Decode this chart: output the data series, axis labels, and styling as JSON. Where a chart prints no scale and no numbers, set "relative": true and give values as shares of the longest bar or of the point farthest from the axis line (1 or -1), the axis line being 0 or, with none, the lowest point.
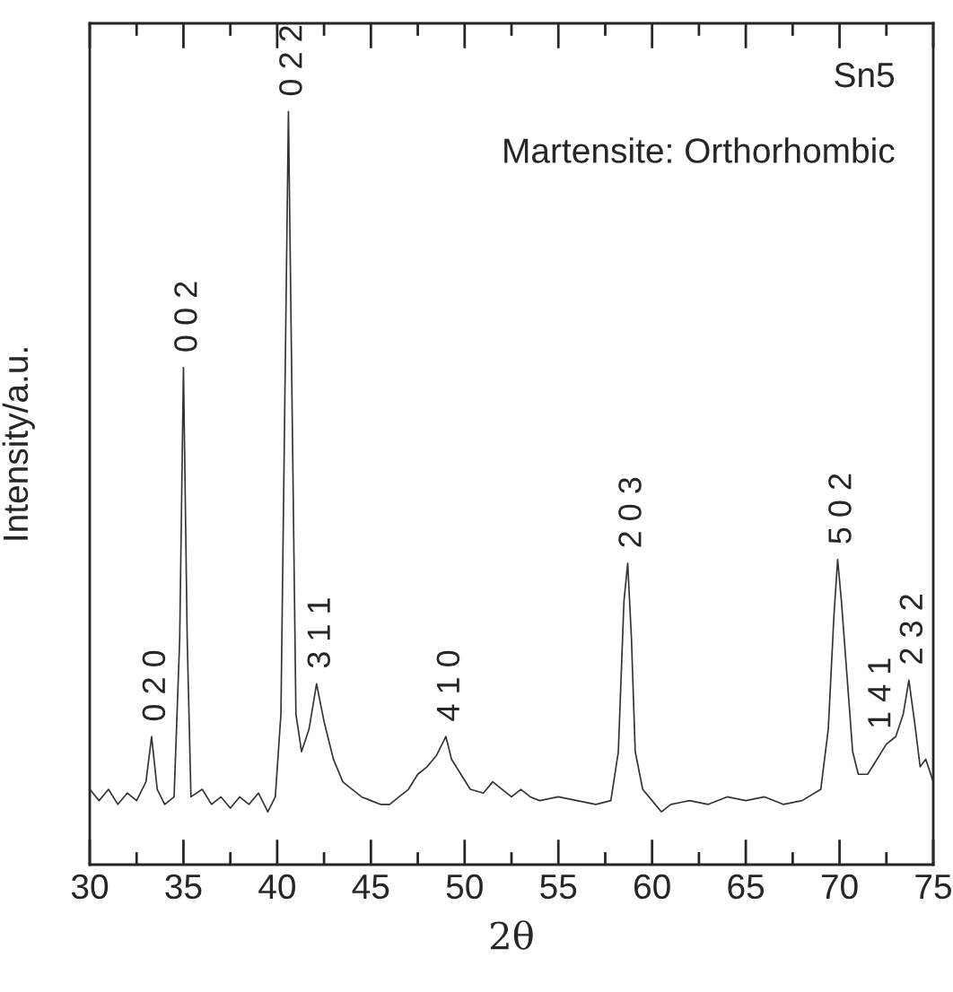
{
  "chart_data": {
    "type": "line",
    "relative": true,
    "xlabel": "2θ",
    "ylabel": "Intensity/a.u.",
    "xlim": [
      30,
      75
    ],
    "xticks": [
      30,
      {
        "value": 32.5,
        "label": null
      },
      35,
      {
        "value": 37.5,
        "label": null
      },
      40,
      {
        "value": 42.5,
        "label": null
      },
      45,
      {
        "value": 47.5,
        "label": null
      },
      50,
      {
        "value": 52.5,
        "label": null
      },
      55,
      {
        "value": 57.5,
        "label": null
      },
      60,
      {
        "value": 62.5,
        "label": null
      },
      65,
      {
        "value": 67.5,
        "label": null
      },
      70,
      {
        "value": 72.5,
        "label": null
      },
      75
    ],
    "tick_labels": "x",
    "grid": false,
    "legend": false,
    "marker": "none",
    "line_style": "solid",
    "series": [
      {
        "color": "#333333",
        "x": [
          30.0,
          30.5,
          31.0,
          31.5,
          32.0,
          32.5,
          33.0,
          33.3,
          33.6,
          34.0,
          34.5,
          34.8,
          35.0,
          35.2,
          35.4,
          36.0,
          36.5,
          37.0,
          37.5,
          38.0,
          38.5,
          39.0,
          39.5,
          39.9,
          40.2,
          40.4,
          40.6,
          40.8,
          41.0,
          41.3,
          41.7,
          42.1,
          42.5,
          43.0,
          43.5,
          44.0,
          44.5,
          45.0,
          45.5,
          46.0,
          46.5,
          47.0,
          47.5,
          48.0,
          48.5,
          49.0,
          49.3,
          49.8,
          50.3,
          51.0,
          51.5,
          52.0,
          52.5,
          53.0,
          53.5,
          54.0,
          55.0,
          56.0,
          57.0,
          57.8,
          58.2,
          58.5,
          58.7,
          58.9,
          59.1,
          59.5,
          60.0,
          60.5,
          61.0,
          62.0,
          63.0,
          64.0,
          65.0,
          66.0,
          67.0,
          68.0,
          69.0,
          69.4,
          69.7,
          69.9,
          70.1,
          70.4,
          70.7,
          71.0,
          71.5,
          72.0,
          72.5,
          73.0,
          73.4,
          73.7,
          74.0,
          74.3,
          74.6,
          75.0
        ],
        "values": [
          0.1,
          0.085,
          0.1,
          0.08,
          0.095,
          0.085,
          0.11,
          0.17,
          0.1,
          0.08,
          0.09,
          0.3,
          0.66,
          0.3,
          0.09,
          0.1,
          0.08,
          0.09,
          0.075,
          0.09,
          0.08,
          0.095,
          0.07,
          0.09,
          0.2,
          0.6,
          1.0,
          0.6,
          0.2,
          0.15,
          0.18,
          0.24,
          0.19,
          0.14,
          0.11,
          0.1,
          0.09,
          0.085,
          0.08,
          0.08,
          0.09,
          0.1,
          0.12,
          0.13,
          0.145,
          0.17,
          0.14,
          0.12,
          0.1,
          0.095,
          0.11,
          0.1,
          0.09,
          0.1,
          0.09,
          0.085,
          0.09,
          0.085,
          0.08,
          0.085,
          0.15,
          0.35,
          0.4,
          0.3,
          0.15,
          0.1,
          0.085,
          0.07,
          0.08,
          0.085,
          0.08,
          0.09,
          0.085,
          0.09,
          0.08,
          0.085,
          0.1,
          0.18,
          0.33,
          0.405,
          0.35,
          0.25,
          0.15,
          0.12,
          0.12,
          0.14,
          0.16,
          0.17,
          0.2,
          0.245,
          0.19,
          0.13,
          0.14,
          0.11
        ]
      }
    ],
    "annotations": [
      "Sn5",
      "Martensite: Orthorhombic",
      {
        "text": "0 2 0",
        "x": 33.3,
        "y": 0.17
      },
      {
        "text": "0 0 2",
        "x": 35.0,
        "y": 0.66
      },
      {
        "text": "0 2 2",
        "x": 40.6,
        "y": 1.0
      },
      {
        "text": "3 1 1",
        "x": 42.1,
        "y": 0.24
      },
      {
        "text": "4 1 0",
        "x": 49.0,
        "y": 0.17
      },
      {
        "text": "2 0 3",
        "x": 58.7,
        "y": 0.4
      },
      {
        "text": "5 0 2",
        "x": 69.9,
        "y": 0.405
      },
      {
        "text": "1 4 1",
        "x": 72.0,
        "y": 0.16
      },
      {
        "text": "2 3 2",
        "x": 73.7,
        "y": 0.245
      }
    ]
  }
}
